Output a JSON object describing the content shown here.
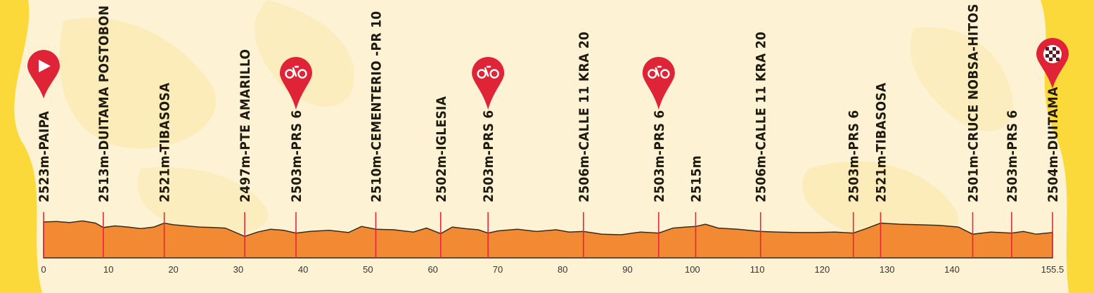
{
  "chart_data": {
    "type": "area",
    "x_ticks": [
      0,
      10,
      20,
      30,
      40,
      50,
      60,
      70,
      80,
      90,
      100,
      110,
      120,
      130,
      140,
      "155.5"
    ],
    "xlim": [
      0,
      155.5
    ],
    "waypoints": [
      {
        "km": 0,
        "label": "2523m-PAIPA",
        "marker": "start"
      },
      {
        "km": 9.2,
        "label": "2513m-DUITAMA POSTOBON",
        "marker": ""
      },
      {
        "km": 18.6,
        "label": "2521m-TIBASOSA",
        "marker": ""
      },
      {
        "km": 31.0,
        "label": "2497m-PTE AMARILLO",
        "marker": ""
      },
      {
        "km": 38.9,
        "label": "2503m-PRS 6",
        "marker": "sprint"
      },
      {
        "km": 51.2,
        "label": "2510m-CEMENTERIO -PR 10",
        "marker": ""
      },
      {
        "km": 61.2,
        "label": "2502m-IGLESIA",
        "marker": ""
      },
      {
        "km": 68.5,
        "label": "2503m-PRS 6",
        "marker": "sprint"
      },
      {
        "km": 83.2,
        "label": "2506m-CALLE 11 KRA 20",
        "marker": ""
      },
      {
        "km": 94.8,
        "label": "2503m-PRS 6",
        "marker": "sprint"
      },
      {
        "km": 100.5,
        "label": "2515m",
        "marker": ""
      },
      {
        "km": 110.5,
        "label": "2506m-CALLE 11 KRA 20",
        "marker": ""
      },
      {
        "km": 124.8,
        "label": "2503m-PRS 6",
        "marker": ""
      },
      {
        "km": 129.0,
        "label": "2521m-TIBASOSA",
        "marker": ""
      },
      {
        "km": 143.2,
        "label": "2501m-CRUCE NOBSA-HITOS",
        "marker": ""
      },
      {
        "km": 149.2,
        "label": "2503m-PRS 6",
        "marker": ""
      },
      {
        "km": 155.5,
        "label": "2504m-DUITAMA",
        "marker": "finish"
      }
    ],
    "elevation_profile": {
      "km": [
        0,
        2,
        4,
        6,
        8,
        9.2,
        11,
        13,
        15,
        17,
        18.6,
        20,
        22,
        24,
        26,
        28,
        31,
        33,
        35,
        37,
        38.9,
        41,
        44,
        47,
        49,
        51.2,
        54,
        57,
        59,
        61.2,
        63,
        65,
        67,
        68.5,
        70,
        73,
        76,
        79,
        81,
        83.2,
        86,
        89,
        92,
        94.8,
        97,
        99,
        100.5,
        102,
        104,
        107,
        110.5,
        113,
        116,
        119,
        122,
        124.8,
        127,
        129,
        132,
        135,
        138,
        141,
        143.2,
        146,
        149.2,
        151,
        153,
        155.5
      ],
      "m": [
        2523,
        2524,
        2522,
        2525,
        2521,
        2513,
        2516,
        2514,
        2511,
        2514,
        2521,
        2518,
        2516,
        2514,
        2513,
        2512,
        2497,
        2505,
        2510,
        2508,
        2503,
        2506,
        2508,
        2504,
        2515,
        2510,
        2509,
        2505,
        2512,
        2502,
        2514,
        2511,
        2509,
        2503,
        2507,
        2510,
        2506,
        2509,
        2505,
        2506,
        2501,
        2500,
        2505,
        2503,
        2512,
        2514,
        2515,
        2519,
        2512,
        2510,
        2506,
        2505,
        2504,
        2504,
        2505,
        2503,
        2512,
        2521,
        2519,
        2518,
        2517,
        2514,
        2501,
        2505,
        2503,
        2506,
        2501,
        2504
      ]
    },
    "colors": {
      "profile_fill": "#f18a33",
      "profile_stroke": "#3a2a1a",
      "waypoint_line": "#e8253a",
      "marker_red": "#e02437",
      "background_outer": "#fcd93a",
      "background_panel": "#fdf2d4"
    }
  }
}
